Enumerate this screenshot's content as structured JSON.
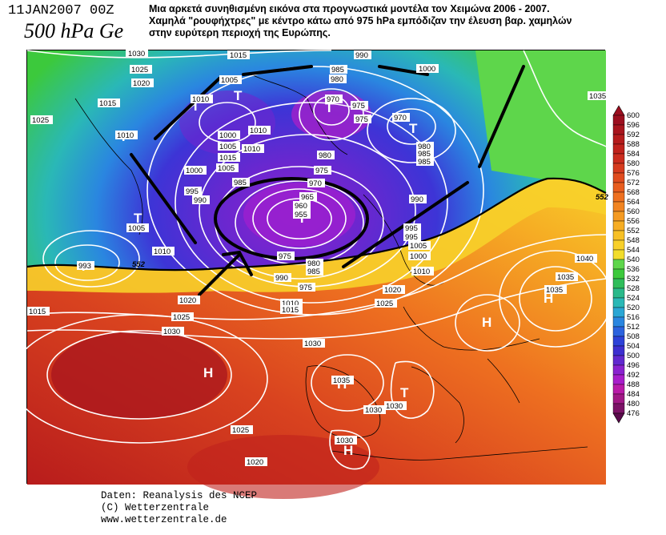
{
  "header": {
    "date": "11JAN2007 00Z",
    "level": "500 hPa Ge",
    "caption_lines": [
      "Μια αρκετά συνηθισμένη εικόνα στα προγνωστικά μοντέλα τον Χειμώνα 2006 - 2007.",
      "Χαμηλά \"ρουφήχτρες\" με κέντρο κάτω από 975 hPa εμπόδιζαν την έλευση βαρ. χαμηλών",
      "στην ευρύτερη περιοχή της Ευρώπης."
    ]
  },
  "map": {
    "centers": [
      {
        "letter": "T"
      },
      {
        "letter": "T"
      },
      {
        "letter": "T"
      },
      {
        "letter": "T"
      },
      {
        "letter": "T"
      },
      {
        "letter": "T"
      },
      {
        "letter": "T"
      },
      {
        "letter": "T"
      },
      {
        "letter": "H"
      },
      {
        "letter": "H"
      },
      {
        "letter": "H"
      },
      {
        "letter": "H"
      },
      {
        "letter": "H"
      },
      {
        "letter": "T"
      }
    ],
    "isobar_labels": [
      "1030",
      "1015",
      "990",
      "1000",
      "1035",
      "1025",
      "1020",
      "1005",
      "1010",
      "985",
      "980",
      "970",
      "975",
      "1015",
      "1025",
      "1010",
      "970",
      "975",
      "1000",
      "1010",
      "1010",
      "1005",
      "980",
      "985",
      "985",
      "980",
      "1015",
      "1000",
      "1005",
      "985",
      "975",
      "970",
      "990",
      "995",
      "990",
      "965",
      "960",
      "955",
      "975",
      "995",
      "1005",
      "1005",
      "1010",
      "1010",
      "993",
      "1000",
      "995",
      "990",
      "985",
      "980",
      "975",
      "1010",
      "1015",
      "1020",
      "1015",
      "1020",
      "1025",
      "1025",
      "1030",
      "1030",
      "1035",
      "1040",
      "1035",
      "1035",
      "1030",
      "1030",
      "1025",
      "1020",
      "1030"
    ],
    "contour_values": [
      "552",
      "552",
      "552"
    ]
  },
  "legend": {
    "values": [
      "600",
      "596",
      "592",
      "588",
      "584",
      "580",
      "576",
      "572",
      "568",
      "564",
      "560",
      "556",
      "552",
      "548",
      "544",
      "540",
      "536",
      "532",
      "528",
      "524",
      "520",
      "516",
      "512",
      "508",
      "504",
      "500",
      "496",
      "492",
      "488",
      "484",
      "480",
      "476"
    ],
    "colors": [
      "#9c0f1f",
      "#a8151d",
      "#b51c1c",
      "#c0221c",
      "#cb2c1e",
      "#d63b1f",
      "#e04c1f",
      "#e85d1f",
      "#ee7020",
      "#f18421",
      "#f49a22",
      "#f6ad24",
      "#f7c025",
      "#f8d02a",
      "#f2dd2c",
      "#5ed64b",
      "#3cc93c",
      "#2fbd5a",
      "#2ab98a",
      "#2ab8b6",
      "#2aa6d4",
      "#2a86e0",
      "#2c63de",
      "#2d42d8",
      "#3d2fd0",
      "#6129cf",
      "#8a22cf",
      "#a81dca",
      "#b91aa8",
      "#a01885",
      "#7b1266",
      "#5a0a4c"
    ]
  },
  "credits": [
    "Daten: Reanalysis des NCEP",
    "(C) Wetterzentrale",
    "www.wetterzentrale.de"
  ]
}
